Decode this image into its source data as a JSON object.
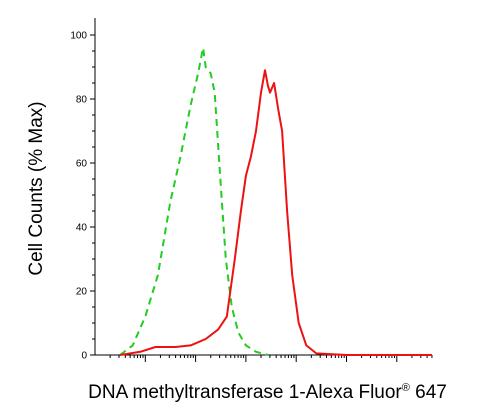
{
  "chart_data": {
    "type": "line",
    "xlabel": "DNA methyltransferase 1-Alexa Fluor",
    "xlabel_superscript": "®",
    "xlabel_suffix": "647",
    "ylabel": "Cell Counts (% Max)",
    "xscale": "log",
    "ylim": [
      0,
      100
    ],
    "yticks": [
      0,
      20,
      40,
      60,
      80,
      100
    ],
    "grid": false,
    "legend": "none",
    "series": [
      {
        "style": "dashed",
        "color": "#22cc22",
        "points": [
          [
            0.5,
            0
          ],
          [
            0.75,
            3
          ],
          [
            1.0,
            12
          ],
          [
            1.25,
            25
          ],
          [
            1.5,
            48
          ],
          [
            1.7,
            62
          ],
          [
            1.9,
            78
          ],
          [
            2.05,
            88
          ],
          [
            2.15,
            96
          ],
          [
            2.2,
            90
          ],
          [
            2.3,
            88
          ],
          [
            2.38,
            82
          ],
          [
            2.48,
            58
          ],
          [
            2.6,
            30
          ],
          [
            2.72,
            15
          ],
          [
            2.85,
            7
          ],
          [
            3.0,
            3
          ],
          [
            3.2,
            1
          ],
          [
            3.45,
            0
          ]
        ]
      },
      {
        "style": "solid",
        "color": "#ee1111",
        "points": [
          [
            0.5,
            0
          ],
          [
            0.9,
            1
          ],
          [
            1.2,
            2.5
          ],
          [
            1.6,
            2.5
          ],
          [
            1.9,
            3
          ],
          [
            2.2,
            5
          ],
          [
            2.45,
            8
          ],
          [
            2.62,
            12
          ],
          [
            2.78,
            30
          ],
          [
            2.9,
            45
          ],
          [
            3.0,
            56
          ],
          [
            3.1,
            62
          ],
          [
            3.2,
            70
          ],
          [
            3.3,
            82
          ],
          [
            3.38,
            89
          ],
          [
            3.44,
            84
          ],
          [
            3.48,
            82
          ],
          [
            3.56,
            85
          ],
          [
            3.64,
            77
          ],
          [
            3.72,
            70
          ],
          [
            3.82,
            45
          ],
          [
            3.92,
            25
          ],
          [
            4.05,
            10
          ],
          [
            4.2,
            3
          ],
          [
            4.4,
            0.5
          ],
          [
            5.0,
            0
          ],
          [
            6.0,
            0
          ],
          [
            6.7,
            0
          ]
        ]
      }
    ]
  }
}
